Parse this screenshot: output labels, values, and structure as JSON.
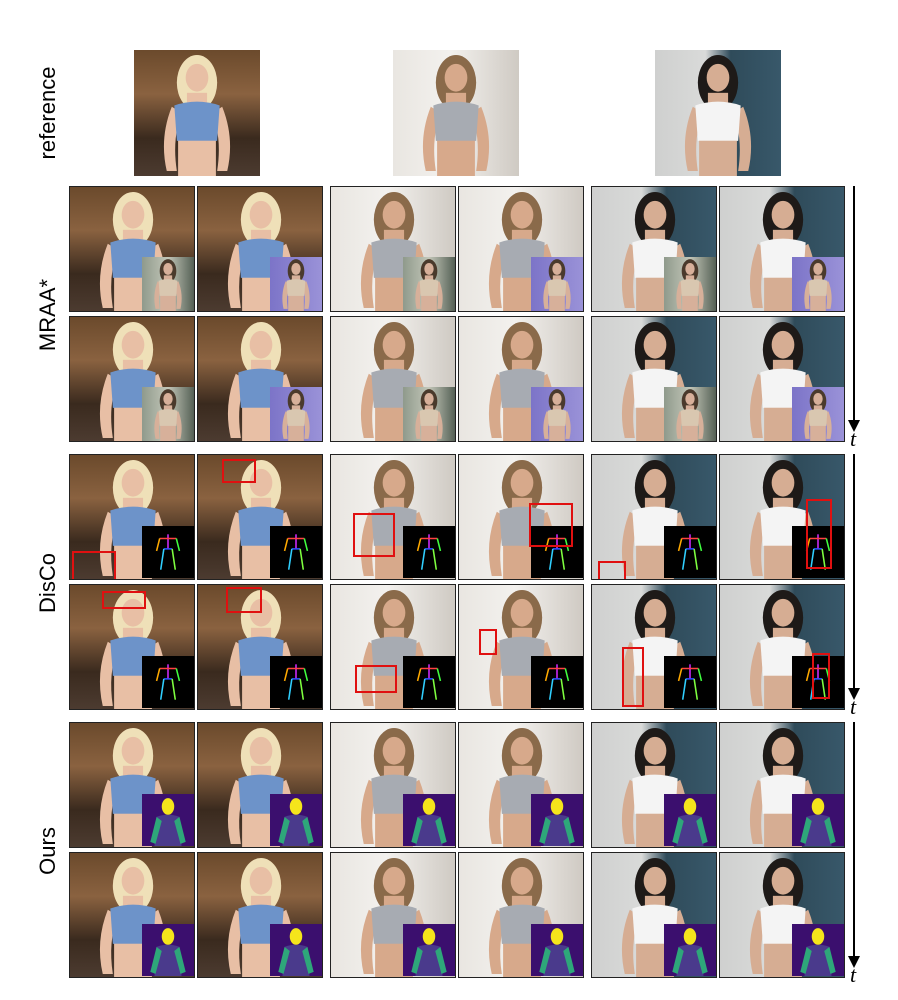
{
  "figure": {
    "row_labels": {
      "reference": "reference",
      "mraa": "MRAA*",
      "disco": "DisCo",
      "ours": "Ours"
    },
    "time_axis_label": "t"
  },
  "colors": {
    "annotation_box": "#e01010",
    "pose_background": "#000000",
    "segmentation_background": "#3b0f6e",
    "segmentation_head": "#f5e51b",
    "segmentation_arm": "#2ea77a",
    "segmentation_torso": "#4a3a8c"
  },
  "subjects": [
    {
      "scene": "warm-room",
      "top": "blue-top",
      "hair": "blonde"
    },
    {
      "scene": "white-room",
      "top": "grey-crop",
      "hair": "brown"
    },
    {
      "scene": "teal-wall",
      "top": "white-tee",
      "hair": "black"
    }
  ],
  "conditioning_insets": {
    "mraa": "driving-video-frame",
    "disco": "pose-skeleton",
    "ours": "body-part-segmentation"
  }
}
